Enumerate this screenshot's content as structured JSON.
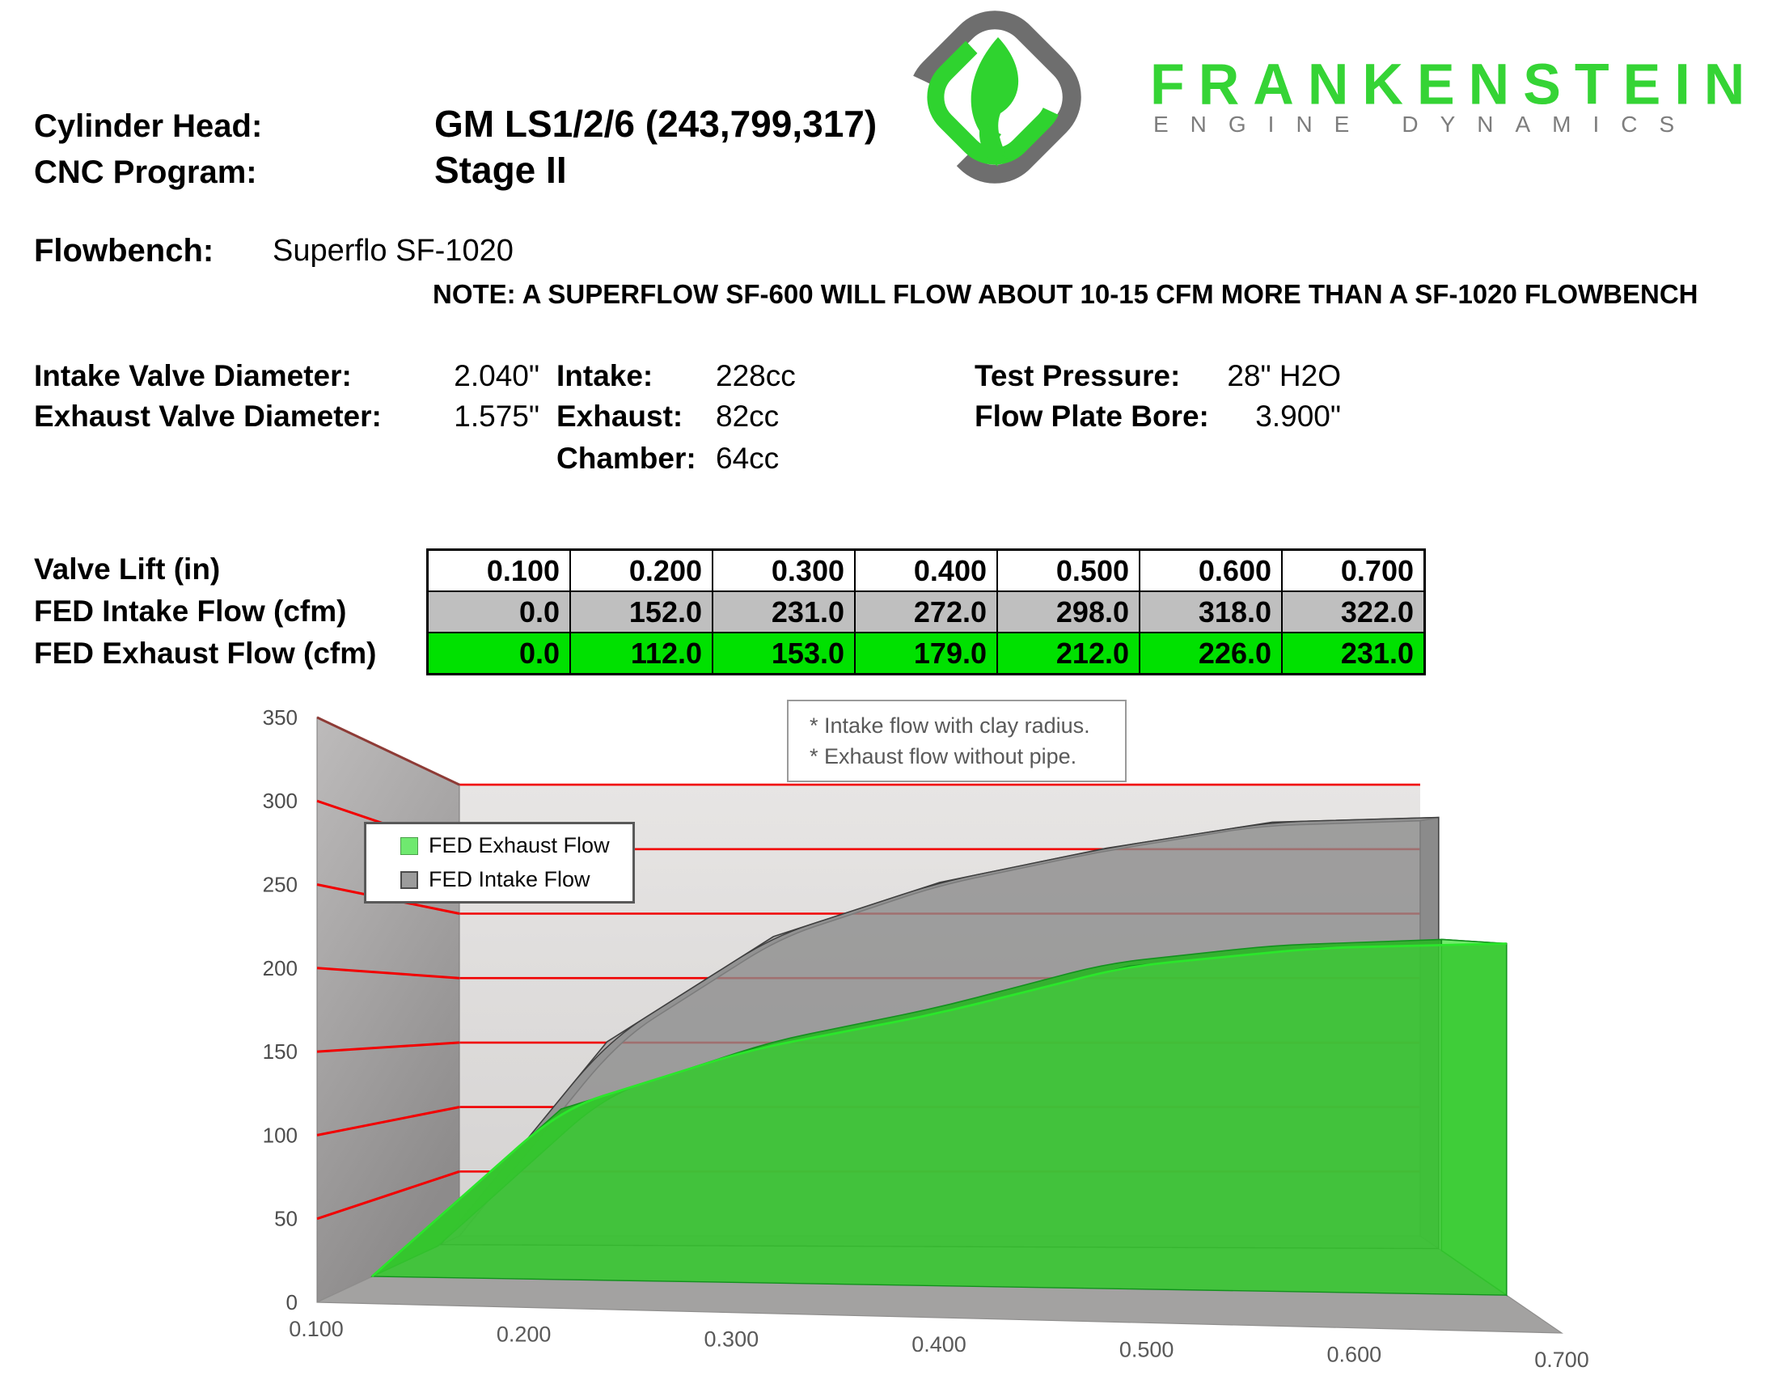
{
  "header": {
    "cylinder_head_label": "Cylinder Head:",
    "cylinder_head_value": "GM LS1/2/6 (243,799,317)",
    "cnc_program_label": "CNC Program:",
    "cnc_program_value": "Stage II",
    "flowbench_label": "Flowbench:",
    "flowbench_value": "Superflo SF-1020",
    "note": "NOTE: A SUPERFLOW SF-600 WILL FLOW ABOUT 10-15 CFM MORE THAN A SF-1020 FLOWBENCH"
  },
  "brand": {
    "name": "FRANKENSTEIN",
    "tagline_word1": "ENGINE",
    "tagline_word2": "DYNAMICS",
    "green": "#2fd32f",
    "gray": "#6e6e6e"
  },
  "specs": {
    "intake_valve_label": "Intake Valve Diameter:",
    "intake_valve_value": "2.040\"",
    "exhaust_valve_label": "Exhaust Valve Diameter:",
    "exhaust_valve_value": "1.575\"",
    "intake_label": "Intake:",
    "intake_value": "228cc",
    "exhaust_label": "Exhaust:",
    "exhaust_value": "82cc",
    "chamber_label": "Chamber:",
    "chamber_value": "64cc",
    "test_pressure_label": "Test Pressure:",
    "test_pressure_value": "28\" H2O",
    "flow_plate_label": "Flow Plate Bore:",
    "flow_plate_value": "3.900\""
  },
  "table": {
    "row_labels": [
      "Valve Lift (in)",
      "FED Intake Flow (cfm)",
      "FED Exhaust Flow (cfm)"
    ],
    "lift": [
      "0.100",
      "0.200",
      "0.300",
      "0.400",
      "0.500",
      "0.600",
      "0.700"
    ],
    "intake": [
      "0.0",
      "152.0",
      "231.0",
      "272.0",
      "298.0",
      "318.0",
      "322.0"
    ],
    "exhaust": [
      "0.0",
      "112.0",
      "153.0",
      "179.0",
      "212.0",
      "226.0",
      "231.0"
    ],
    "intake_row_color": "#bfbfbf",
    "exhaust_row_color": "#00e100"
  },
  "chart_data": {
    "type": "area",
    "projection": "3d",
    "x": [
      0.1,
      0.2,
      0.3,
      0.4,
      0.5,
      0.6,
      0.7
    ],
    "categories": [
      "0.100",
      "0.200",
      "0.300",
      "0.400",
      "0.500",
      "0.600",
      "0.700"
    ],
    "series": [
      {
        "name": "FED Exhaust Flow",
        "values": [
          0,
          112,
          153,
          179,
          212,
          226,
          231
        ],
        "color": "#36c72f"
      },
      {
        "name": "FED Intake Flow",
        "values": [
          0,
          152,
          231,
          272,
          298,
          318,
          322
        ],
        "color": "#8c8c8c"
      }
    ],
    "xlabel": "",
    "ylabel": "",
    "ylim": [
      0,
      350
    ],
    "yticks": [
      0,
      50,
      100,
      150,
      200,
      250,
      300,
      350
    ],
    "grid": true,
    "gridline_color": "#f10000",
    "legend_position": "upper-left-overlay",
    "legend": [
      "FED Exhaust Flow",
      "FED Intake Flow"
    ],
    "legend_swatch_exhaust": "#6fe96f",
    "legend_swatch_intake": "#9c9c9c",
    "annotation_line1": "* Intake flow with clay radius.",
    "annotation_line2": "* Exhaust flow without pipe."
  }
}
